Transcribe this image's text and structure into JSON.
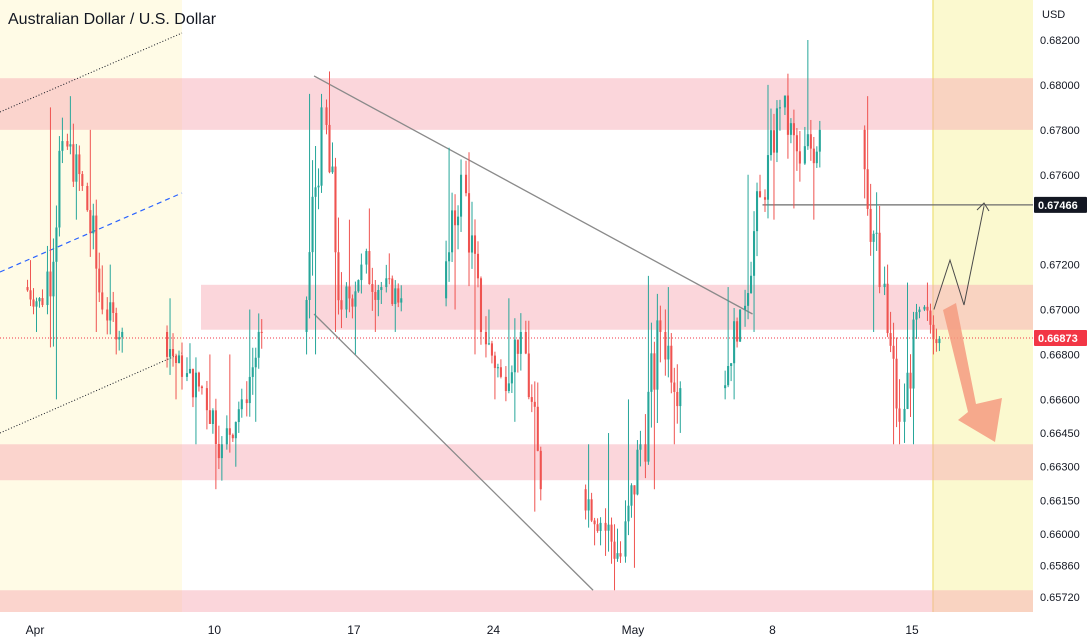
{
  "chart_data": {
    "type": "candlestick",
    "title": "Australian Dollar / U.S. Dollar",
    "currency": "USD",
    "y_ticks": [
      "0.68200",
      "0.68000",
      "0.67800",
      "0.67600",
      "0.67460",
      "0.67200",
      "0.67000",
      "0.66800",
      "0.66600",
      "0.66450",
      "0.66300",
      "0.66150",
      "0.66000",
      "0.65860",
      "0.65720"
    ],
    "x_ticks": [
      {
        "label": "Apr",
        "date": "Apr 1"
      },
      {
        "label": "10",
        "date": "Apr 10"
      },
      {
        "label": "17",
        "date": "Apr 17"
      },
      {
        "label": "24",
        "date": "Apr 24"
      },
      {
        "label": "May",
        "date": "May 1"
      },
      {
        "label": "8",
        "date": "May 8"
      },
      {
        "label": "15",
        "date": "May 15"
      }
    ],
    "price_badges": [
      {
        "value": "0.67466",
        "color": "#131722"
      },
      {
        "value": "0.66873",
        "color": "#f23645"
      }
    ],
    "current_price": 0.66873,
    "resistance_level": 0.67466,
    "zones": [
      {
        "from": 0.678,
        "to": 0.6803,
        "color": "#f7a5b0"
      },
      {
        "from": 0.6691,
        "to": 0.6711,
        "color": "#f7a5b0"
      },
      {
        "from": 0.6624,
        "to": 0.664,
        "color": "#f7a5b0"
      },
      {
        "from": 0.6564,
        "to": 0.6575,
        "color": "#f7a5b0"
      }
    ],
    "trend_lines": [
      {
        "name": "descending-channel-upper",
        "from": [
          "Apr 15",
          0.6804
        ],
        "to": [
          "May 7",
          0.6698
        ]
      },
      {
        "name": "descending-channel-lower",
        "from": [
          "Apr 15",
          0.6698
        ],
        "to": [
          "Apr 29",
          0.6575
        ]
      }
    ],
    "ohlc": [
      [
        "Apr 1",
        0.671,
        0.6722,
        0.669,
        0.6702
      ],
      [
        "Apr 2",
        0.6702,
        0.679,
        0.666,
        0.6775
      ],
      [
        "Apr 3",
        0.6775,
        0.6795,
        0.674,
        0.6755
      ],
      [
        "Apr 4",
        0.6755,
        0.678,
        0.669,
        0.67
      ],
      [
        "Apr 5",
        0.67,
        0.672,
        0.668,
        0.669
      ],
      [
        "Apr 8",
        0.669,
        0.6705,
        0.666,
        0.667
      ],
      [
        "Apr 9",
        0.667,
        0.6685,
        0.664,
        0.6665
      ],
      [
        "Apr 10",
        0.6665,
        0.668,
        0.662,
        0.664
      ],
      [
        "Apr 11",
        0.664,
        0.668,
        0.663,
        0.666
      ],
      [
        "Apr 12",
        0.666,
        0.67,
        0.665,
        0.669
      ],
      [
        "Apr 15",
        0.669,
        0.6796,
        0.668,
        0.679
      ],
      [
        "Apr 16",
        0.679,
        0.6806,
        0.669,
        0.67
      ],
      [
        "Apr 17",
        0.67,
        0.674,
        0.668,
        0.672
      ],
      [
        "Apr 18",
        0.672,
        0.6745,
        0.669,
        0.671
      ],
      [
        "Apr 19",
        0.671,
        0.6725,
        0.669,
        0.6705
      ],
      [
        "Apr 22",
        0.6705,
        0.6772,
        0.67,
        0.676
      ],
      [
        "Apr 23",
        0.676,
        0.677,
        0.668,
        0.669
      ],
      [
        "Apr 24",
        0.669,
        0.67,
        0.666,
        0.667
      ],
      [
        "Apr 25",
        0.667,
        0.6705,
        0.665,
        0.669
      ],
      [
        "Apr 26",
        0.669,
        0.6695,
        0.661,
        0.662
      ],
      [
        "Apr 29",
        0.662,
        0.664,
        0.6595,
        0.6605
      ],
      [
        "Apr 30",
        0.6605,
        0.6645,
        0.6575,
        0.659
      ],
      [
        "May 1",
        0.659,
        0.666,
        0.6585,
        0.664
      ],
      [
        "May 2",
        0.664,
        0.6715,
        0.662,
        0.669
      ],
      [
        "May 3",
        0.669,
        0.671,
        0.664,
        0.6665
      ],
      [
        "May 6",
        0.6665,
        0.671,
        0.666,
        0.67
      ],
      [
        "May 7",
        0.67,
        0.676,
        0.669,
        0.675
      ],
      [
        "May 8",
        0.675,
        0.68,
        0.674,
        0.679
      ],
      [
        "May 9",
        0.679,
        0.6805,
        0.6745,
        0.6765
      ],
      [
        "May 10",
        0.6765,
        0.682,
        0.674,
        0.678
      ],
      [
        "May 13",
        0.678,
        0.6795,
        0.669,
        0.671
      ],
      [
        "May 14",
        0.671,
        0.672,
        0.664,
        0.665
      ],
      [
        "May 15",
        0.665,
        0.6712,
        0.664,
        0.67
      ],
      [
        "May 16",
        0.67,
        0.6712,
        0.668,
        0.6687
      ]
    ]
  }
}
